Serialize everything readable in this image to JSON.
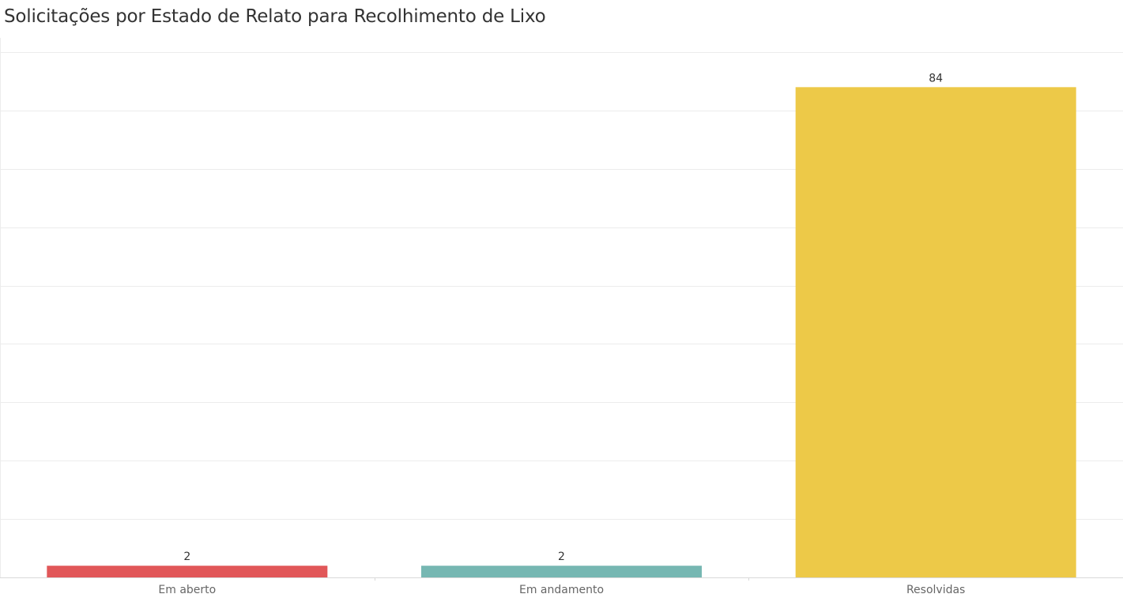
{
  "chart_data": {
    "type": "bar",
    "title": "Solicitações por Estado de Relato para Recolhimento de Lixo",
    "xlabel": "",
    "ylabel": "",
    "categories": [
      "Em aberto",
      "Em andamento",
      "Resolvidas"
    ],
    "values": [
      2,
      2,
      84
    ],
    "data_labels": [
      "2",
      "2",
      "84"
    ],
    "colors": [
      "#e15759",
      "#76b7b2",
      "#edc948"
    ],
    "ylim": [
      0,
      90
    ],
    "grid": true,
    "legend": "none"
  }
}
